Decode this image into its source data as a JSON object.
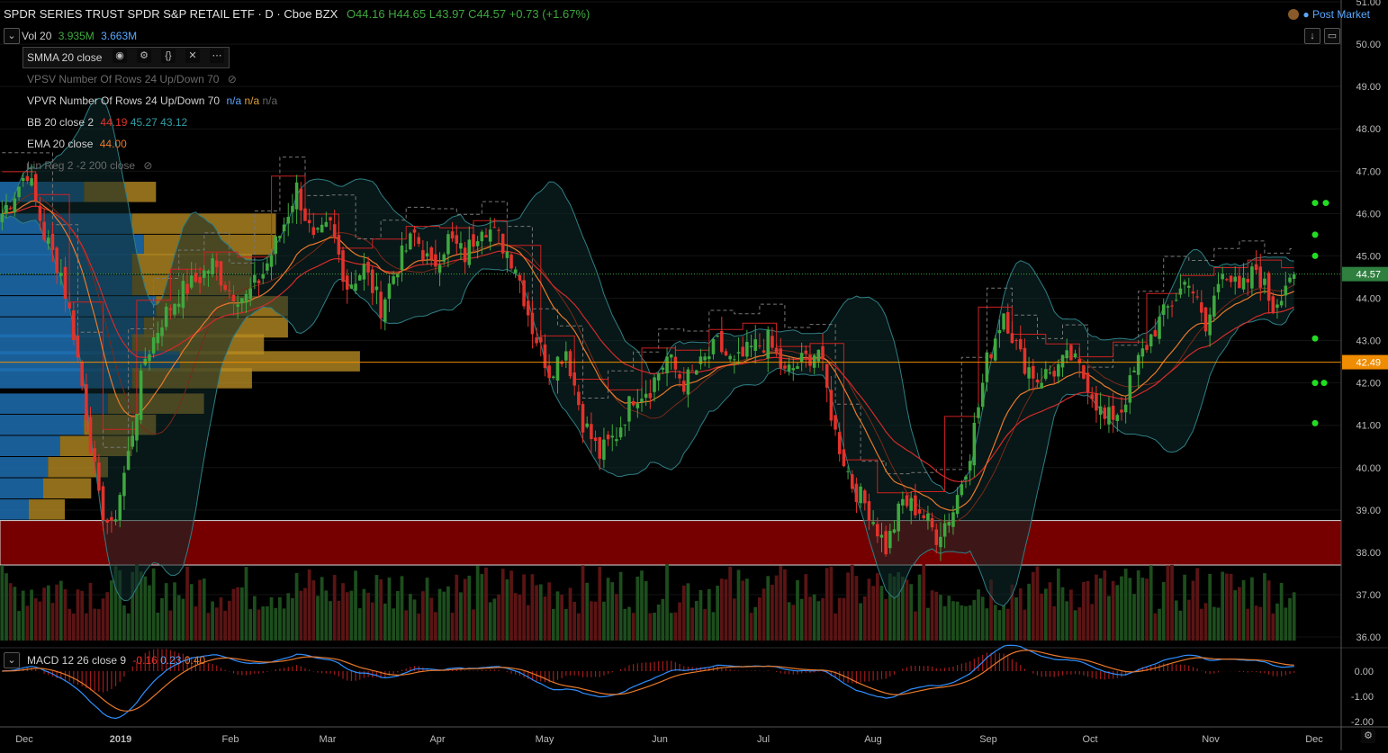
{
  "header": {
    "title": "SPDR SERIES TRUST SPDR S&P RETAIL ETF · D · Cboe BZX",
    "open": "O44.16",
    "high": "H44.65",
    "low": "L43.97",
    "close": "C44.57",
    "change": "+0.73 (+1.67%)",
    "post_market": "Post Market"
  },
  "indicators": {
    "vol_name": "Vol 20",
    "vol_v1": "3.935M",
    "vol_v2": "3.663M",
    "smma": "SMMA 20 close",
    "vpsv": "VPSV Number Of Rows 24 Up/Down 70",
    "vpvr": "VPVR Number Of Rows 24 Up/Down 70",
    "vpvr_v1": "n/a",
    "vpvr_v2": "n/a",
    "vpvr_v3": "n/a",
    "bb": "BB 20 close 2",
    "bb_v1": "44.19",
    "bb_v2": "45.27",
    "bb_v3": "43.12",
    "ema": "EMA 20 close",
    "ema_v": "44.00",
    "linreg": "Lin Reg 2 -2 200 close",
    "macd": "MACD 12 26 close 9",
    "macd_v1": "-0.16",
    "macd_v2": "0.23",
    "macd_v3": "0.40"
  },
  "colors": {
    "up": "#3fa83f",
    "down": "#e2322b",
    "bb": "#2f7f86",
    "ema": "#e8792b",
    "smma": "#d22b2b",
    "vp_blue": "#1f6fb2",
    "vp_gold": "#b58a22",
    "zone": "#8b0000",
    "price_tag": "#2f7f3f",
    "level_tag": "#f08c00"
  },
  "price_tags": {
    "last": "44.57",
    "level": "42.49"
  },
  "chart_data": {
    "type": "candlestick",
    "title": "SPDR SERIES TRUST SPDR S&P RETAIL ETF · D · Cboe BZX",
    "ylim": [
      36,
      51
    ],
    "y_ticks": [
      "51.00",
      "50.00",
      "49.00",
      "48.00",
      "47.00",
      "46.00",
      "45.00",
      "44.00",
      "43.00",
      "42.00",
      "41.00",
      "40.00",
      "39.00",
      "38.00",
      "37.00",
      "36.00"
    ],
    "macd_ticks": [
      "0.00",
      "-1.00",
      "-2.00"
    ],
    "x_ticks": [
      "Dec",
      "2019",
      "Feb",
      "Mar",
      "Apr",
      "May",
      "Jun",
      "Jul",
      "Aug",
      "Sep",
      "Oct",
      "Nov",
      "Dec"
    ],
    "last_close": 44.57,
    "horizontal_level": 42.49,
    "support_zone": [
      37.7,
      38.75
    ],
    "path_points": [
      [
        0,
        46.0
      ],
      [
        6,
        47.0
      ],
      [
        10,
        45.5
      ],
      [
        14,
        44.6
      ],
      [
        17,
        43.2
      ],
      [
        20,
        41.3
      ],
      [
        23,
        39.2
      ],
      [
        26,
        38.5
      ],
      [
        30,
        40.3
      ],
      [
        34,
        42.6
      ],
      [
        38,
        43.5
      ],
      [
        42,
        44.1
      ],
      [
        46,
        44.4
      ],
      [
        50,
        44.8
      ],
      [
        54,
        44.2
      ],
      [
        58,
        44.0
      ],
      [
        62,
        44.6
      ],
      [
        66,
        45.5
      ],
      [
        70,
        46.6
      ],
      [
        74,
        45.3
      ],
      [
        78,
        45.7
      ],
      [
        82,
        44.3
      ],
      [
        86,
        44.7
      ],
      [
        90,
        43.8
      ],
      [
        94,
        44.8
      ],
      [
        98,
        45.5
      ],
      [
        102,
        44.7
      ],
      [
        106,
        45.4
      ],
      [
        110,
        45.0
      ],
      [
        114,
        45.8
      ],
      [
        118,
        45.4
      ],
      [
        122,
        44.8
      ],
      [
        126,
        43.3
      ],
      [
        130,
        42.3
      ],
      [
        134,
        42.8
      ],
      [
        138,
        41.1
      ],
      [
        142,
        40.3
      ],
      [
        146,
        40.8
      ],
      [
        150,
        41.7
      ],
      [
        154,
        41.9
      ],
      [
        158,
        42.6
      ],
      [
        162,
        42.0
      ],
      [
        166,
        42.4
      ],
      [
        170,
        42.9
      ],
      [
        174,
        42.4
      ],
      [
        178,
        42.8
      ],
      [
        182,
        43.0
      ],
      [
        186,
        42.2
      ],
      [
        190,
        42.5
      ],
      [
        194,
        42.8
      ],
      [
        198,
        40.8
      ],
      [
        202,
        39.6
      ],
      [
        206,
        39.0
      ],
      [
        210,
        38.1
      ],
      [
        214,
        39.2
      ],
      [
        218,
        39.0
      ],
      [
        222,
        38.4
      ],
      [
        226,
        39.0
      ],
      [
        230,
        40.4
      ],
      [
        234,
        42.5
      ],
      [
        238,
        43.7
      ],
      [
        242,
        42.6
      ],
      [
        246,
        42.1
      ],
      [
        250,
        42.3
      ],
      [
        254,
        42.6
      ],
      [
        258,
        42.0
      ],
      [
        262,
        41.1
      ],
      [
        266,
        41.4
      ],
      [
        270,
        42.5
      ],
      [
        274,
        43.3
      ],
      [
        278,
        43.9
      ],
      [
        282,
        44.5
      ],
      [
        286,
        43.2
      ],
      [
        290,
        44.8
      ],
      [
        294,
        44.1
      ],
      [
        298,
        44.7
      ],
      [
        302,
        43.8
      ],
      [
        306,
        44.57
      ]
    ],
    "volume_profile": [
      {
        "price": 46.5,
        "up": 0.35,
        "down": 0.3
      },
      {
        "price": 45.75,
        "up": 0.55,
        "down": 0.6
      },
      {
        "price": 45.25,
        "up": 0.6,
        "down": 0.55
      },
      {
        "price": 44.8,
        "up": 0.55,
        "down": 0.5
      },
      {
        "price": 44.3,
        "up": 0.55,
        "down": 0.5
      },
      {
        "price": 43.8,
        "up": 0.65,
        "down": 0.55
      },
      {
        "price": 43.3,
        "up": 0.6,
        "down": 0.6
      },
      {
        "price": 42.9,
        "up": 0.55,
        "down": 0.55
      },
      {
        "price": 42.5,
        "up": 0.75,
        "down": 0.75
      },
      {
        "price": 42.1,
        "up": 0.55,
        "down": 0.5
      },
      {
        "price": 41.5,
        "up": 0.45,
        "down": 0.4
      },
      {
        "price": 41.0,
        "up": 0.35,
        "down": 0.3
      },
      {
        "price": 40.5,
        "up": 0.25,
        "down": 0.3
      },
      {
        "price": 40.0,
        "up": 0.2,
        "down": 0.25
      },
      {
        "price": 39.5,
        "up": 0.18,
        "down": 0.2
      },
      {
        "price": 39.0,
        "up": 0.12,
        "down": 0.15
      }
    ]
  }
}
